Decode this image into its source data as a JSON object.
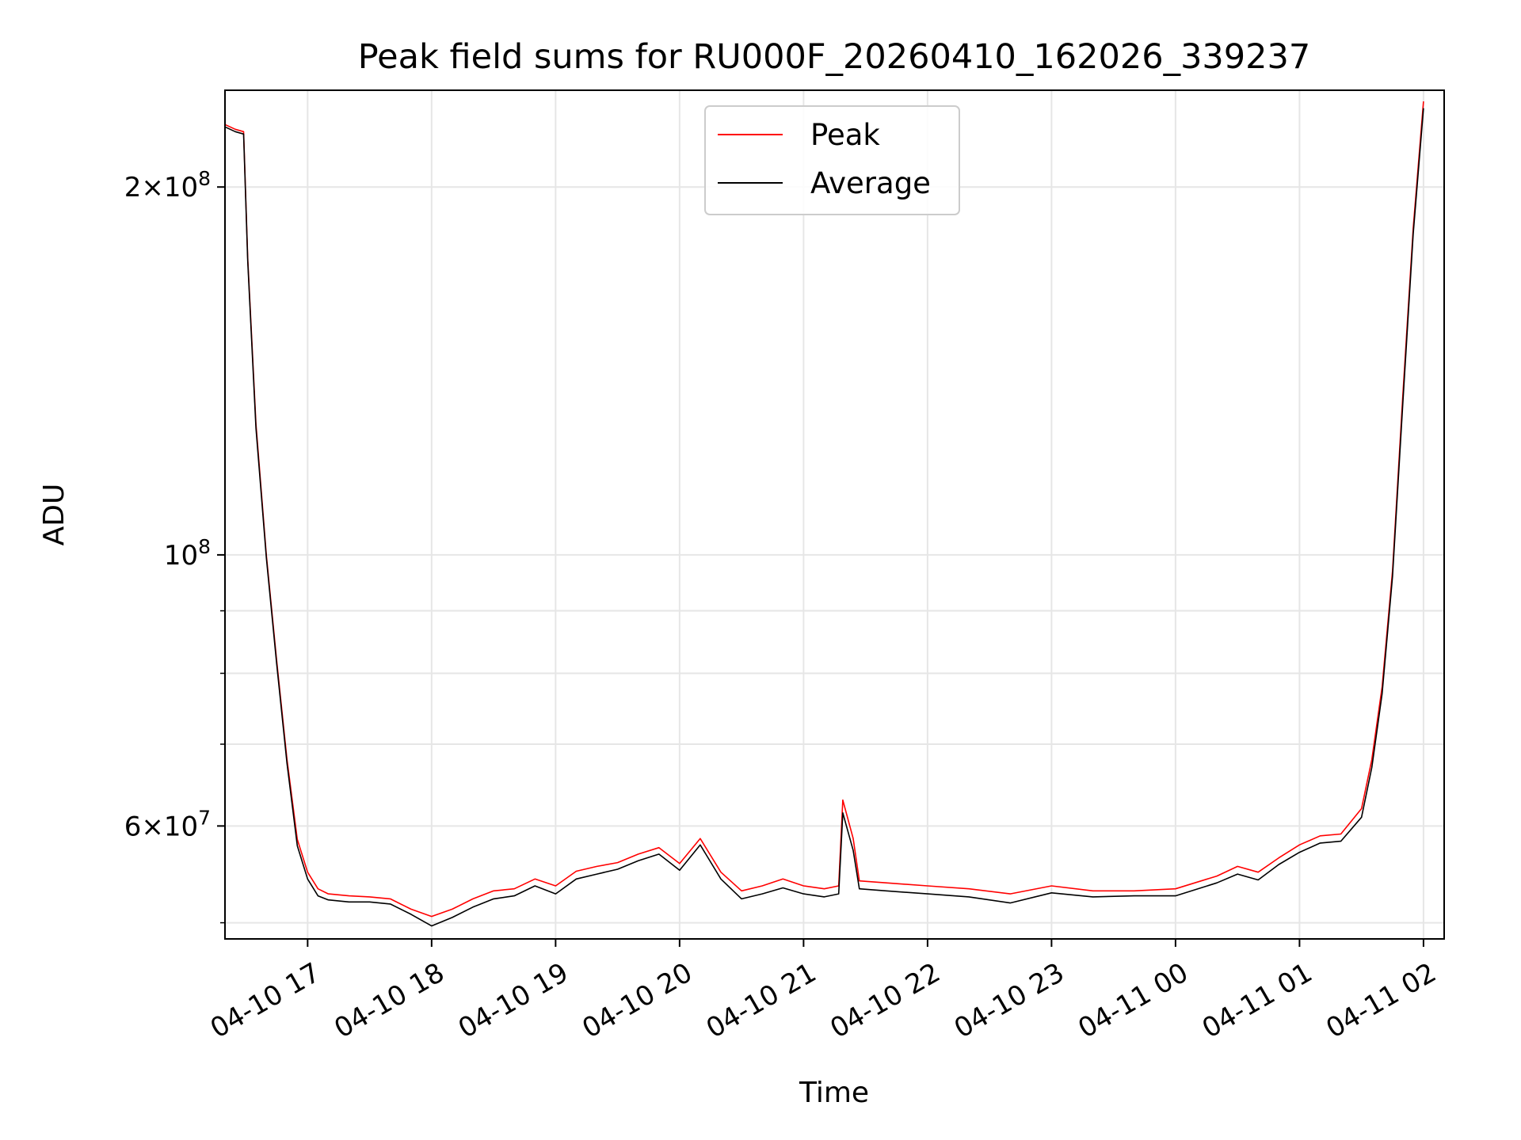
{
  "chart_data": {
    "type": "line",
    "title": "Peak field sums for RU000F_20260410_162026_339237",
    "xlabel": "Time",
    "ylabel": "ADU",
    "y_scale": "log",
    "ylim": [
      48500000,
      240000000
    ],
    "xlim": [
      "2026-04-10 16:20",
      "2026-04-11 02:10"
    ],
    "grid": true,
    "legend": "upper center",
    "x_ticks": [
      {
        "t": "2026-04-10 17:00",
        "label": "04-10 17"
      },
      {
        "t": "2026-04-10 18:00",
        "label": "04-10 18"
      },
      {
        "t": "2026-04-10 19:00",
        "label": "04-10 19"
      },
      {
        "t": "2026-04-10 20:00",
        "label": "04-10 20"
      },
      {
        "t": "2026-04-10 21:00",
        "label": "04-10 21"
      },
      {
        "t": "2026-04-10 22:00",
        "label": "04-10 22"
      },
      {
        "t": "2026-04-10 23:00",
        "label": "04-10 23"
      },
      {
        "t": "2026-04-11 00:00",
        "label": "04-11 00"
      },
      {
        "t": "2026-04-11 01:00",
        "label": "04-11 01"
      },
      {
        "t": "2026-04-11 02:00",
        "label": "04-11 02"
      }
    ],
    "y_major_ticks": [
      {
        "value": 60000000,
        "mant": "6",
        "exp": "7"
      },
      {
        "value": 100000000,
        "mant": "",
        "exp": "8"
      },
      {
        "value": 200000000,
        "mant": "2",
        "exp": "8"
      }
    ],
    "y_minor_ticks": [
      50000000,
      70000000,
      80000000,
      90000000
    ],
    "series": [
      {
        "name": "Peak",
        "color": "#ff0000",
        "points": [
          [
            "2026-04-10 16:20",
            225000000
          ],
          [
            "2026-04-10 16:25",
            223000000
          ],
          [
            "2026-04-10 16:29",
            222000000
          ],
          [
            "2026-04-10 16:31",
            175000000
          ],
          [
            "2026-04-10 16:35",
            128000000
          ],
          [
            "2026-04-10 16:40",
            100000000
          ],
          [
            "2026-04-10 16:45",
            82000000
          ],
          [
            "2026-04-10 16:50",
            68000000
          ],
          [
            "2026-04-10 16:55",
            58500000
          ],
          [
            "2026-04-10 17:00",
            55000000
          ],
          [
            "2026-04-10 17:05",
            53300000
          ],
          [
            "2026-04-10 17:10",
            52800000
          ],
          [
            "2026-04-10 17:20",
            52600000
          ],
          [
            "2026-04-10 17:30",
            52500000
          ],
          [
            "2026-04-10 17:40",
            52300000
          ],
          [
            "2026-04-10 17:50",
            51300000
          ],
          [
            "2026-04-10 18:00",
            50600000
          ],
          [
            "2026-04-10 18:10",
            51300000
          ],
          [
            "2026-04-10 18:20",
            52300000
          ],
          [
            "2026-04-10 18:30",
            53100000
          ],
          [
            "2026-04-10 18:40",
            53300000
          ],
          [
            "2026-04-10 18:50",
            54300000
          ],
          [
            "2026-04-10 19:00",
            53600000
          ],
          [
            "2026-04-10 19:10",
            55100000
          ],
          [
            "2026-04-10 19:20",
            55600000
          ],
          [
            "2026-04-10 19:30",
            56000000
          ],
          [
            "2026-04-10 19:40",
            56900000
          ],
          [
            "2026-04-10 19:50",
            57600000
          ],
          [
            "2026-04-10 20:00",
            55900000
          ],
          [
            "2026-04-10 20:10",
            58600000
          ],
          [
            "2026-04-10 20:20",
            55000000
          ],
          [
            "2026-04-10 20:30",
            53100000
          ],
          [
            "2026-04-10 20:40",
            53600000
          ],
          [
            "2026-04-10 20:50",
            54300000
          ],
          [
            "2026-04-10 21:00",
            53600000
          ],
          [
            "2026-04-10 21:10",
            53300000
          ],
          [
            "2026-04-10 21:17",
            53600000
          ],
          [
            "2026-04-10 21:19",
            63000000
          ],
          [
            "2026-04-10 21:24",
            58600000
          ],
          [
            "2026-04-10 21:27",
            54100000
          ],
          [
            "2026-04-10 21:40",
            53900000
          ],
          [
            "2026-04-10 22:00",
            53600000
          ],
          [
            "2026-04-10 22:20",
            53300000
          ],
          [
            "2026-04-10 22:40",
            52800000
          ],
          [
            "2026-04-10 23:00",
            53600000
          ],
          [
            "2026-04-10 23:20",
            53100000
          ],
          [
            "2026-04-10 23:40",
            53100000
          ],
          [
            "2026-04-11 00:00",
            53300000
          ],
          [
            "2026-04-11 00:20",
            54600000
          ],
          [
            "2026-04-11 00:30",
            55600000
          ],
          [
            "2026-04-11 00:40",
            55000000
          ],
          [
            "2026-04-11 00:50",
            56500000
          ],
          [
            "2026-04-11 01:00",
            57900000
          ],
          [
            "2026-04-11 01:10",
            58900000
          ],
          [
            "2026-04-11 01:20",
            59100000
          ],
          [
            "2026-04-11 01:30",
            62000000
          ],
          [
            "2026-04-11 01:35",
            68000000
          ],
          [
            "2026-04-11 01:40",
            78000000
          ],
          [
            "2026-04-11 01:45",
            97000000
          ],
          [
            "2026-04-11 01:50",
            135000000
          ],
          [
            "2026-04-11 01:55",
            185000000
          ],
          [
            "2026-04-11 02:00",
            235000000
          ]
        ]
      },
      {
        "name": "Average",
        "color": "#000000",
        "points": [
          [
            "2026-04-10 16:20",
            224000000
          ],
          [
            "2026-04-10 16:25",
            222000000
          ],
          [
            "2026-04-10 16:29",
            221000000
          ],
          [
            "2026-04-10 16:31",
            174000000
          ],
          [
            "2026-04-10 16:35",
            127000000
          ],
          [
            "2026-04-10 16:40",
            99500000
          ],
          [
            "2026-04-10 16:45",
            81500000
          ],
          [
            "2026-04-10 16:50",
            67500000
          ],
          [
            "2026-04-10 16:55",
            57800000
          ],
          [
            "2026-04-10 17:00",
            54300000
          ],
          [
            "2026-04-10 17:05",
            52600000
          ],
          [
            "2026-04-10 17:10",
            52200000
          ],
          [
            "2026-04-10 17:20",
            52000000
          ],
          [
            "2026-04-10 17:30",
            52000000
          ],
          [
            "2026-04-10 17:40",
            51800000
          ],
          [
            "2026-04-10 17:50",
            50800000
          ],
          [
            "2026-04-10 18:00",
            49700000
          ],
          [
            "2026-04-10 18:10",
            50500000
          ],
          [
            "2026-04-10 18:20",
            51500000
          ],
          [
            "2026-04-10 18:30",
            52300000
          ],
          [
            "2026-04-10 18:40",
            52600000
          ],
          [
            "2026-04-10 18:50",
            53600000
          ],
          [
            "2026-04-10 19:00",
            52800000
          ],
          [
            "2026-04-10 19:10",
            54300000
          ],
          [
            "2026-04-10 19:20",
            54800000
          ],
          [
            "2026-04-10 19:30",
            55300000
          ],
          [
            "2026-04-10 19:40",
            56200000
          ],
          [
            "2026-04-10 19:50",
            56900000
          ],
          [
            "2026-04-10 20:00",
            55200000
          ],
          [
            "2026-04-10 20:10",
            57900000
          ],
          [
            "2026-04-10 20:20",
            54300000
          ],
          [
            "2026-04-10 20:30",
            52300000
          ],
          [
            "2026-04-10 20:40",
            52800000
          ],
          [
            "2026-04-10 20:50",
            53400000
          ],
          [
            "2026-04-10 21:00",
            52800000
          ],
          [
            "2026-04-10 21:10",
            52500000
          ],
          [
            "2026-04-10 21:17",
            52800000
          ],
          [
            "2026-04-10 21:19",
            61500000
          ],
          [
            "2026-04-10 21:24",
            57300000
          ],
          [
            "2026-04-10 21:27",
            53300000
          ],
          [
            "2026-04-10 21:40",
            53100000
          ],
          [
            "2026-04-10 22:00",
            52800000
          ],
          [
            "2026-04-10 22:20",
            52500000
          ],
          [
            "2026-04-10 22:40",
            51900000
          ],
          [
            "2026-04-10 23:00",
            52900000
          ],
          [
            "2026-04-10 23:20",
            52500000
          ],
          [
            "2026-04-10 23:40",
            52600000
          ],
          [
            "2026-04-11 00:00",
            52600000
          ],
          [
            "2026-04-11 00:20",
            53900000
          ],
          [
            "2026-04-11 00:30",
            54800000
          ],
          [
            "2026-04-11 00:40",
            54200000
          ],
          [
            "2026-04-11 00:50",
            55800000
          ],
          [
            "2026-04-11 01:00",
            57100000
          ],
          [
            "2026-04-11 01:10",
            58100000
          ],
          [
            "2026-04-11 01:20",
            58300000
          ],
          [
            "2026-04-11 01:30",
            61000000
          ],
          [
            "2026-04-11 01:35",
            67000000
          ],
          [
            "2026-04-11 01:40",
            77000000
          ],
          [
            "2026-04-11 01:45",
            96000000
          ],
          [
            "2026-04-11 01:50",
            133000000
          ],
          [
            "2026-04-11 01:55",
            183000000
          ],
          [
            "2026-04-11 02:00",
            232000000
          ]
        ]
      }
    ]
  }
}
